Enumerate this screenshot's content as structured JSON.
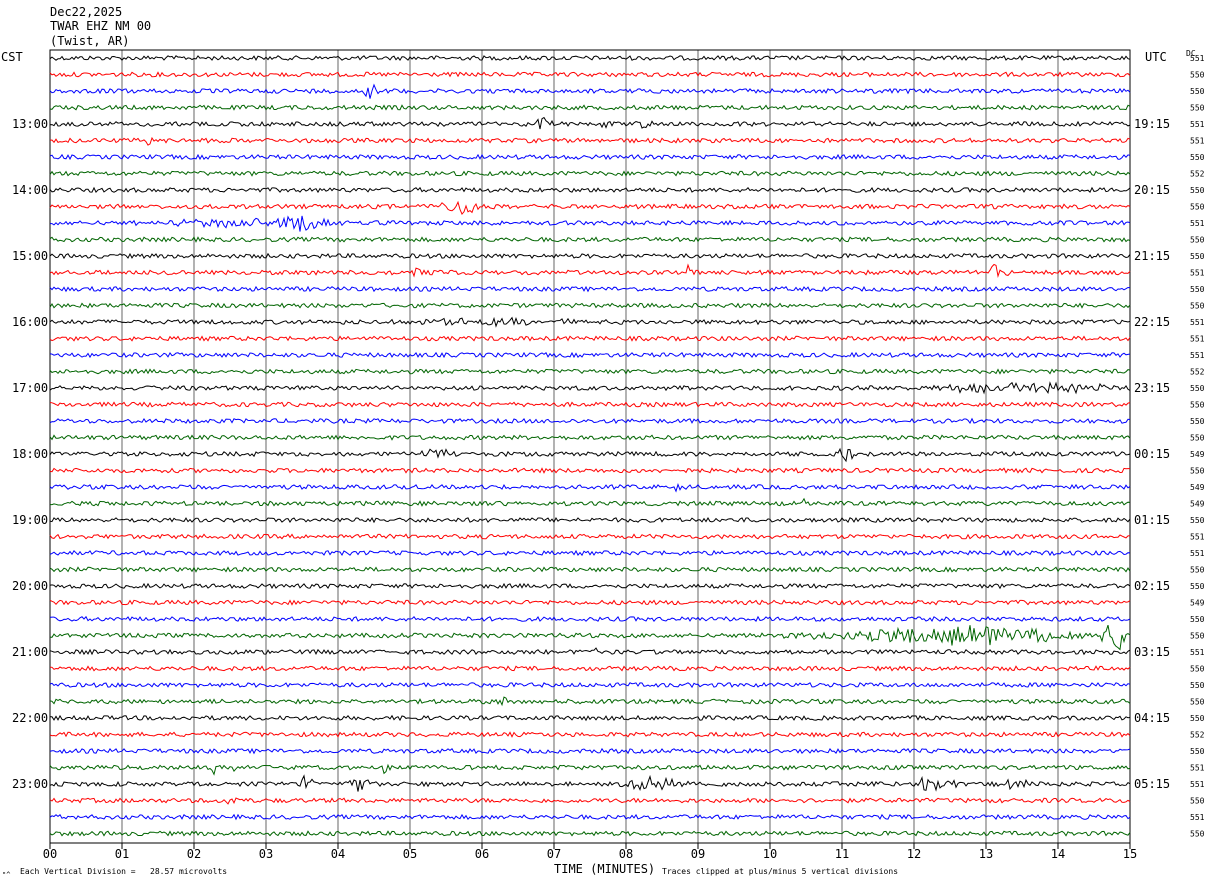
{
  "header": {
    "date": "Dec22,2025",
    "station": "TWAR EHZ NM 00",
    "location": "(Twist, AR)"
  },
  "left_timezone": "CST",
  "right_timezone": "UTC",
  "dc_label": "DC",
  "footer": {
    "scale_note": "Each Vertical Division =   28.57 microvolts",
    "xlabel": "TIME (MINUTES)",
    "clip_note": "Traces clipped at plus/minus 5 vertical divisions",
    "corner_mark": "\"^"
  },
  "colors": {
    "cycle": [
      "#000000",
      "#ff0000",
      "#0000ff",
      "#006400"
    ],
    "grid": "#000000"
  },
  "chart_data": {
    "type": "line",
    "title": "",
    "xlabel": "TIME (MINUTES)",
    "xlim": [
      0,
      15
    ],
    "x_ticks": [
      "00",
      "01",
      "02",
      "03",
      "04",
      "05",
      "06",
      "07",
      "08",
      "09",
      "10",
      "11",
      "12",
      "13",
      "14",
      "15"
    ],
    "trace_count": 48,
    "trace_minutes": 15,
    "left_hour_labels": [
      "13:00",
      "14:00",
      "15:00",
      "16:00",
      "17:00",
      "18:00",
      "19:00",
      "20:00",
      "21:00",
      "22:00",
      "23:00"
    ],
    "right_hour_labels": [
      "19:15",
      "20:15",
      "21:15",
      "22:15",
      "23:15",
      "00:15",
      "01:15",
      "02:15",
      "03:15",
      "04:15",
      "05:15"
    ],
    "hour_label_first_trace": 4,
    "hour_label_every": 4,
    "dc_values": [
      "551",
      "550",
      "550",
      "550",
      "551",
      "551",
      "550",
      "552",
      "550",
      "550",
      "551",
      "550",
      "550",
      "551",
      "550",
      "550",
      "551",
      "551",
      "551",
      "552",
      "550",
      "550",
      "550",
      "550",
      "549",
      "550",
      "549",
      "549",
      "550",
      "551",
      "551",
      "550",
      "550",
      "549",
      "550",
      "550",
      "551",
      "550",
      "550",
      "550",
      "550",
      "552",
      "550",
      "551",
      "551",
      "550",
      "551",
      "550"
    ],
    "noise_amplitude": 2.2,
    "events": [
      {
        "trace": 2,
        "minute": 4.45,
        "width": 0.08,
        "amp": 13
      },
      {
        "trace": 4,
        "minute": 6.85,
        "width": 0.12,
        "amp": 8
      },
      {
        "trace": 4,
        "minute": 7.75,
        "width": 0.08,
        "amp": 6
      },
      {
        "trace": 4,
        "minute": 8.3,
        "width": 0.1,
        "amp": 6
      },
      {
        "trace": 5,
        "minute": 1.35,
        "width": 0.06,
        "amp": 7
      },
      {
        "trace": 9,
        "minute": 5.7,
        "width": 0.25,
        "amp": 8
      },
      {
        "trace": 10,
        "minute": 3.55,
        "width": 0.35,
        "amp": 9
      },
      {
        "trace": 10,
        "minute": 2.6,
        "width": 1.0,
        "amp": 4
      },
      {
        "trace": 13,
        "minute": 5.15,
        "width": 0.1,
        "amp": 5
      },
      {
        "trace": 13,
        "minute": 8.85,
        "width": 0.06,
        "amp": 6
      },
      {
        "trace": 13,
        "minute": 13.15,
        "width": 0.12,
        "amp": 8
      },
      {
        "trace": 16,
        "minute": 6.0,
        "width": 1.2,
        "amp": 3
      },
      {
        "trace": 20,
        "minute": 13.9,
        "width": 1.0,
        "amp": 4
      },
      {
        "trace": 20,
        "minute": 12.8,
        "width": 0.4,
        "amp": 4
      },
      {
        "trace": 24,
        "minute": 11.05,
        "width": 0.08,
        "amp": 12
      },
      {
        "trace": 24,
        "minute": 5.35,
        "width": 0.2,
        "amp": 5
      },
      {
        "trace": 26,
        "minute": 8.7,
        "width": 0.06,
        "amp": 6
      },
      {
        "trace": 27,
        "minute": 10.45,
        "width": 0.06,
        "amp": 6
      },
      {
        "trace": 35,
        "minute": 12.6,
        "width": 1.6,
        "amp": 9
      },
      {
        "trace": 35,
        "minute": 14.8,
        "width": 0.15,
        "amp": 16
      },
      {
        "trace": 36,
        "minute": 7.6,
        "width": 0.1,
        "amp": 6
      },
      {
        "trace": 39,
        "minute": 6.3,
        "width": 0.06,
        "amp": 8
      },
      {
        "trace": 43,
        "minute": 2.25,
        "width": 0.05,
        "amp": 13
      },
      {
        "trace": 43,
        "minute": 2.6,
        "width": 0.05,
        "amp": 11
      },
      {
        "trace": 43,
        "minute": 4.65,
        "width": 0.05,
        "amp": 9
      },
      {
        "trace": 44,
        "minute": 3.55,
        "width": 0.1,
        "amp": 8
      },
      {
        "trace": 44,
        "minute": 4.3,
        "width": 0.15,
        "amp": 9
      },
      {
        "trace": 44,
        "minute": 8.4,
        "width": 0.35,
        "amp": 7
      },
      {
        "trace": 44,
        "minute": 12.3,
        "width": 0.25,
        "amp": 8
      },
      {
        "trace": 44,
        "minute": 13.4,
        "width": 0.15,
        "amp": 6
      },
      {
        "trace": 45,
        "minute": 2.5,
        "width": 0.1,
        "amp": 5
      }
    ]
  }
}
